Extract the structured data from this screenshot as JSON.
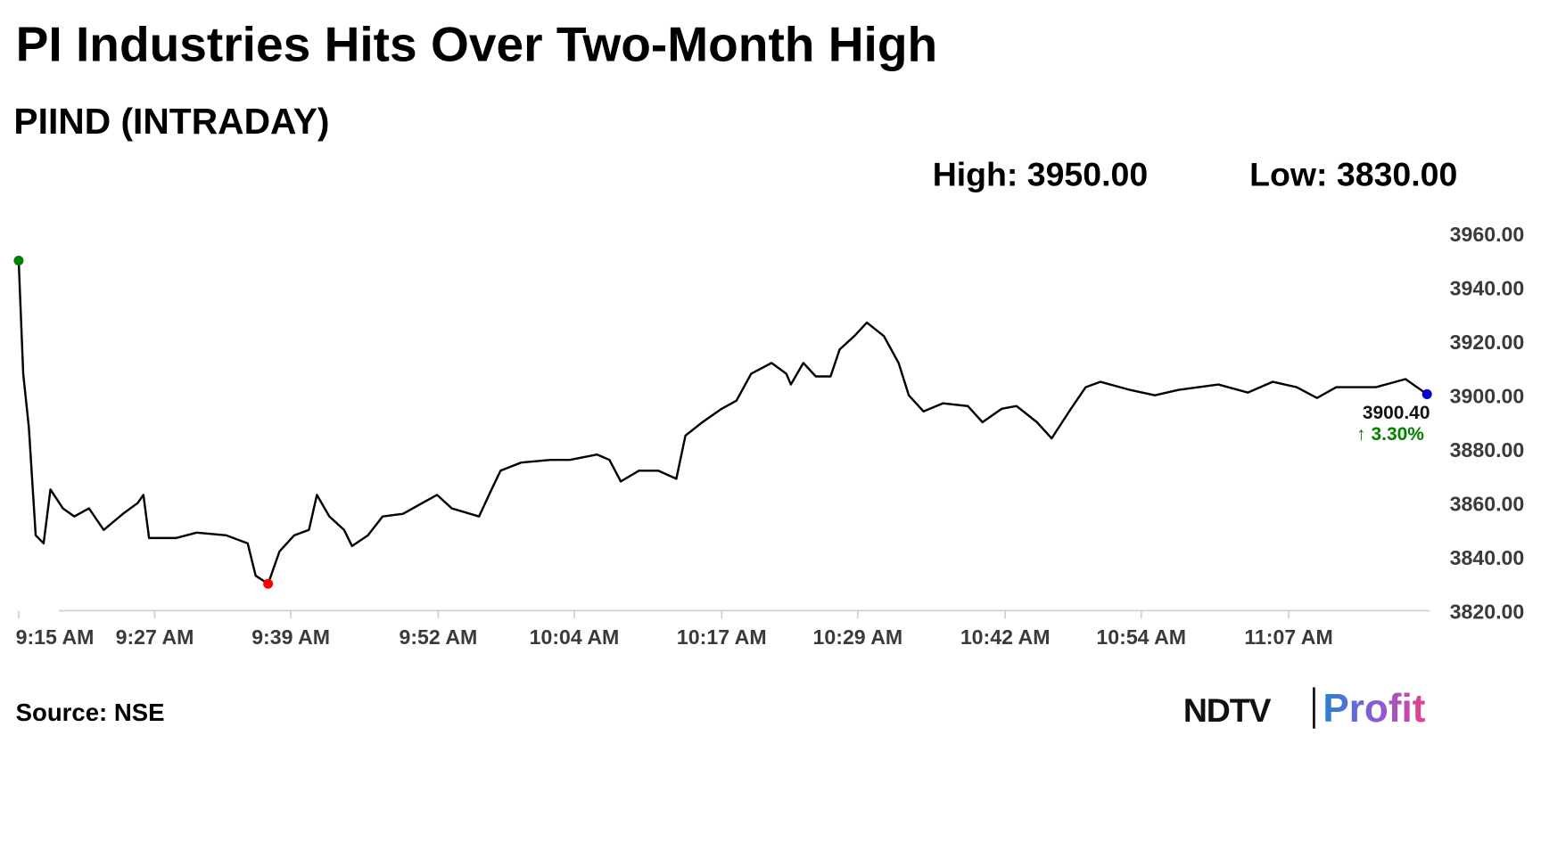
{
  "chart_data": {
    "type": "line",
    "title": "PI Industries Hits Over Two-Month High",
    "subtitle": "PIIND (INTRADAY)",
    "high_label": "High: 3950.00",
    "low_label": "Low: 3830.00",
    "last_value_label": "3900.40",
    "change_label": "↑ 3.30%",
    "source": "Source: NSE",
    "brand": {
      "left": "NDTV",
      "right": "Profit"
    },
    "color": "#000000",
    "x": [
      555.0,
      555.4,
      555.9,
      556.5,
      557.2,
      557.8,
      558.9,
      559.9,
      561.2,
      562.5,
      564.2,
      565.5,
      566.0,
      566.5,
      568.9,
      570.7,
      573.3,
      575.2,
      575.9,
      577.0,
      578.0,
      579.3,
      580.6,
      581.3,
      582.4,
      583.7,
      584.4,
      585.8,
      587.1,
      588.9,
      590.6,
      591.9,
      593.2,
      595.6,
      596.7,
      597.5,
      599.3,
      601.9,
      603.6,
      606.0,
      607.1,
      608.1,
      609.7,
      611.4,
      613.0,
      613.8,
      615.3,
      617.0,
      618.3,
      619.6,
      621.4,
      622.7,
      623.1,
      624.2,
      625.3,
      626.6,
      627.4,
      628.7,
      629.8,
      631.3,
      632.6,
      633.5,
      634.8,
      636.5,
      638.7,
      640.0,
      641.7,
      643.0,
      644.8,
      646.1,
      647.8,
      649.1,
      650.4,
      653.0,
      655.2,
      657.3,
      660.8,
      663.4,
      665.6,
      667.7,
      669.5,
      671.2,
      674.7,
      677.3,
      679.2
    ],
    "values": [
      3950,
      3908,
      3888,
      3848,
      3845,
      3865,
      3858,
      3855,
      3858,
      3850,
      3856,
      3860,
      3863,
      3847,
      3847,
      3849,
      3848,
      3845,
      3833,
      3830,
      3842,
      3848,
      3850,
      3863,
      3855,
      3850,
      3844,
      3848,
      3855,
      3856,
      3860,
      3863,
      3858,
      3855,
      3865,
      3872,
      3875,
      3876,
      3876,
      3878,
      3876,
      3868,
      3872,
      3872,
      3869,
      3885,
      3890,
      3895,
      3898,
      3908,
      3912,
      3908,
      3904,
      3912,
      3907,
      3907,
      3917,
      3922,
      3927,
      3922,
      3912,
      3900,
      3894,
      3897,
      3896,
      3890,
      3895,
      3896,
      3890,
      3884,
      3895,
      3903,
      3905,
      3902,
      3900,
      3902,
      3904,
      3901,
      3905,
      3903,
      3899,
      3903,
      3903,
      3906,
      3900.4
    ],
    "markers": {
      "start": {
        "index": 0,
        "color": "#008000"
      },
      "low": {
        "index": 19,
        "color": "#ff0000"
      },
      "end": {
        "index": 84,
        "color": "#0000cc"
      }
    },
    "change_color": "#008000",
    "xlim": [
      555,
      679.2
    ],
    "xticks": [
      {
        "value": 555,
        "label": "9:15 AM"
      },
      {
        "value": 567,
        "label": "9:27 AM"
      },
      {
        "value": 579,
        "label": "9:39 AM"
      },
      {
        "value": 592,
        "label": "9:52 AM"
      },
      {
        "value": 604,
        "label": "10:04 AM"
      },
      {
        "value": 617,
        "label": "10:17 AM"
      },
      {
        "value": 629,
        "label": "10:29 AM"
      },
      {
        "value": 642,
        "label": "10:42 AM"
      },
      {
        "value": 654,
        "label": "10:54 AM"
      },
      {
        "value": 667,
        "label": "11:07 AM"
      }
    ],
    "ylim": [
      3820,
      3960
    ],
    "yticks": [
      {
        "value": 3820,
        "label": "3820.00"
      },
      {
        "value": 3840,
        "label": "3840.00"
      },
      {
        "value": 3860,
        "label": "3860.00"
      },
      {
        "value": 3880,
        "label": "3880.00"
      },
      {
        "value": 3900,
        "label": "3900.00"
      },
      {
        "value": 3920,
        "label": "3920.00"
      },
      {
        "value": 3940,
        "label": "3940.00"
      },
      {
        "value": 3960,
        "label": "3960.00"
      }
    ],
    "grid": false
  }
}
